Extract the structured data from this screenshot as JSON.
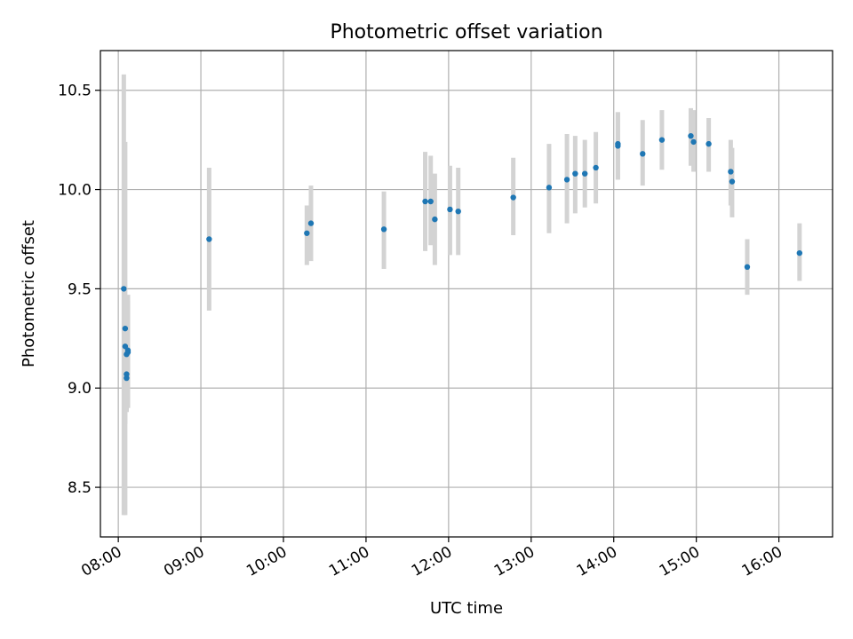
{
  "chart_data": {
    "type": "scatter",
    "title": "Photometric offset variation",
    "xlabel": "UTC time",
    "ylabel": "Photometric offset",
    "x_unit": "UTC time of day",
    "xlim": [
      "07:47",
      "16:39"
    ],
    "ylim": [
      8.25,
      10.7
    ],
    "x_ticks": [
      "08:00",
      "09:00",
      "10:00",
      "11:00",
      "12:00",
      "13:00",
      "14:00",
      "15:00",
      "16:00"
    ],
    "y_ticks": [
      "8.5",
      "9.0",
      "9.5",
      "10.0",
      "10.5"
    ],
    "grid": true,
    "legend": "none",
    "colors": {
      "points": "#1f77b4",
      "error_bars": "#d3d3d3",
      "grid": "#b0b0b0"
    },
    "series": [
      {
        "points": [
          {
            "t": "08:04",
            "y": 9.5,
            "lo": 8.36,
            "hi": 10.58
          },
          {
            "t": "08:05",
            "y": 9.3,
            "lo": 8.36,
            "hi": 10.24
          },
          {
            "t": "08:05",
            "y": 9.21,
            "lo": 8.82,
            "hi": 9.38
          },
          {
            "t": "08:06",
            "y": 9.17,
            "lo": 8.88,
            "hi": 9.41
          },
          {
            "t": "08:06",
            "y": 9.07,
            "lo": 8.88,
            "hi": 9.38
          },
          {
            "t": "08:06",
            "y": 9.05,
            "lo": 8.88,
            "hi": 9.31
          },
          {
            "t": "08:07",
            "y": 9.18,
            "lo": 8.9,
            "hi": 9.47
          },
          {
            "t": "08:07",
            "y": 9.19,
            "lo": 8.9,
            "hi": 9.44
          },
          {
            "t": "09:06",
            "y": 9.75,
            "lo": 9.39,
            "hi": 10.11
          },
          {
            "t": "10:17",
            "y": 9.78,
            "lo": 9.62,
            "hi": 9.92
          },
          {
            "t": "10:20",
            "y": 9.83,
            "lo": 9.64,
            "hi": 10.02
          },
          {
            "t": "11:13",
            "y": 9.8,
            "lo": 9.6,
            "hi": 9.99
          },
          {
            "t": "11:43",
            "y": 9.94,
            "lo": 9.69,
            "hi": 10.19
          },
          {
            "t": "11:47",
            "y": 9.94,
            "lo": 9.72,
            "hi": 10.17
          },
          {
            "t": "11:50",
            "y": 9.85,
            "lo": 9.62,
            "hi": 10.08
          },
          {
            "t": "12:01",
            "y": 9.9,
            "lo": 9.67,
            "hi": 10.12
          },
          {
            "t": "12:07",
            "y": 9.89,
            "lo": 9.67,
            "hi": 10.11
          },
          {
            "t": "12:47",
            "y": 9.96,
            "lo": 9.77,
            "hi": 10.16
          },
          {
            "t": "13:13",
            "y": 10.01,
            "lo": 9.78,
            "hi": 10.23
          },
          {
            "t": "13:26",
            "y": 10.05,
            "lo": 9.83,
            "hi": 10.28
          },
          {
            "t": "13:32",
            "y": 10.08,
            "lo": 9.88,
            "hi": 10.27
          },
          {
            "t": "13:39",
            "y": 10.08,
            "lo": 9.91,
            "hi": 10.25
          },
          {
            "t": "13:47",
            "y": 10.11,
            "lo": 9.93,
            "hi": 10.29
          },
          {
            "t": "14:03",
            "y": 10.23,
            "lo": 10.05,
            "hi": 10.39
          },
          {
            "t": "14:03",
            "y": 10.22,
            "lo": 10.05,
            "hi": 10.39
          },
          {
            "t": "14:21",
            "y": 10.18,
            "lo": 10.02,
            "hi": 10.35
          },
          {
            "t": "14:35",
            "y": 10.25,
            "lo": 10.1,
            "hi": 10.4
          },
          {
            "t": "14:56",
            "y": 10.27,
            "lo": 10.12,
            "hi": 10.41
          },
          {
            "t": "14:58",
            "y": 10.24,
            "lo": 10.09,
            "hi": 10.4
          },
          {
            "t": "15:09",
            "y": 10.23,
            "lo": 10.09,
            "hi": 10.36
          },
          {
            "t": "15:25",
            "y": 10.09,
            "lo": 9.92,
            "hi": 10.25
          },
          {
            "t": "15:26",
            "y": 10.04,
            "lo": 9.86,
            "hi": 10.21
          },
          {
            "t": "15:37",
            "y": 9.61,
            "lo": 9.47,
            "hi": 9.75
          },
          {
            "t": "16:15",
            "y": 9.68,
            "lo": 9.54,
            "hi": 9.83
          }
        ]
      }
    ]
  }
}
